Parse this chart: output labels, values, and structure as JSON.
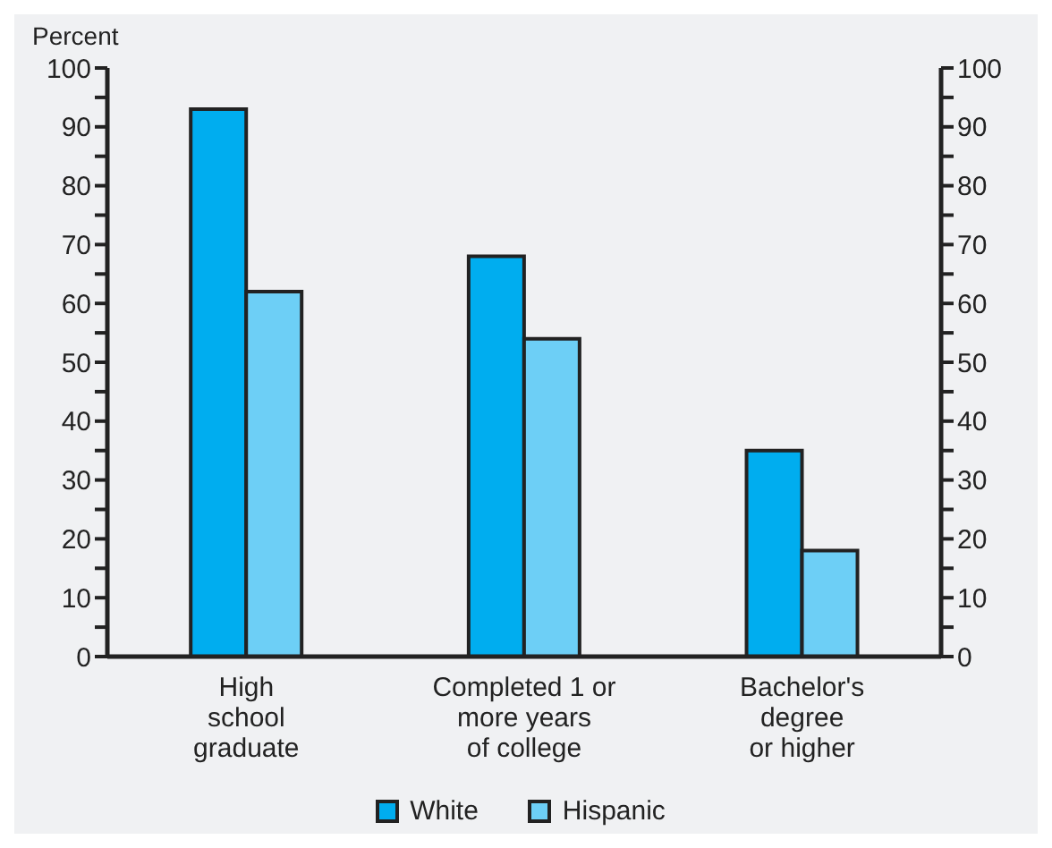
{
  "chart_data": {
    "type": "bar",
    "ylabel": "Percent",
    "categories": [
      "High\nschool\ngraduate",
      "Completed 1 or\nmore years\nof college",
      "Bachelor's\ndegree\nor higher"
    ],
    "series": [
      {
        "name": "White",
        "color": "#00adef",
        "values": [
          93,
          68,
          35
        ]
      },
      {
        "name": "Hispanic",
        "color": "#6dcff6",
        "values": [
          62,
          54,
          18
        ]
      }
    ],
    "ylim": [
      0,
      100
    ],
    "yticks": [
      0,
      {
        "value": 5,
        "label": null
      },
      10,
      {
        "value": 15,
        "label": null
      },
      20,
      {
        "value": 25,
        "label": null
      },
      30,
      {
        "value": 35,
        "label": null
      },
      40,
      {
        "value": 45,
        "label": null
      },
      50,
      {
        "value": 55,
        "label": null
      },
      60,
      {
        "value": 65,
        "label": null
      },
      70,
      {
        "value": 75,
        "label": null
      },
      80,
      {
        "value": 85,
        "label": null
      },
      90,
      {
        "value": 95,
        "label": null
      },
      100
    ],
    "y2lim": [
      0,
      100
    ],
    "y2ticks": [
      0,
      {
        "value": 5,
        "label": null
      },
      10,
      {
        "value": 15,
        "label": null
      },
      20,
      {
        "value": 25,
        "label": null
      },
      30,
      {
        "value": 35,
        "label": null
      },
      40,
      {
        "value": 45,
        "label": null
      },
      50,
      {
        "value": 55,
        "label": null
      },
      60,
      {
        "value": 65,
        "label": null
      },
      70,
      {
        "value": 75,
        "label": null
      },
      80,
      {
        "value": 85,
        "label": null
      },
      90,
      {
        "value": 95,
        "label": null
      },
      100
    ],
    "grid": false,
    "legend": "bottom"
  }
}
